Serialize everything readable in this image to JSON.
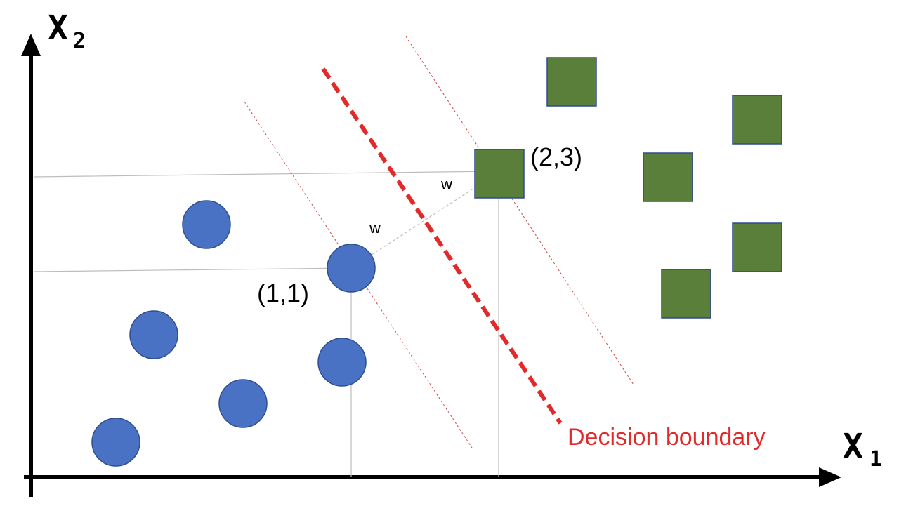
{
  "axes": {
    "x_label": "X",
    "x_subscript": "1",
    "y_label": "X",
    "y_subscript": "2"
  },
  "labels": {
    "point_a": "(1,1)",
    "point_b": "(2,3)",
    "w_upper": "w",
    "w_lower": "w",
    "decision_boundary": "Decision boundary"
  },
  "colors": {
    "circle_fill": "#4A72C4",
    "circle_stroke": "#2F4F8F",
    "square_fill": "#5A7F3A",
    "square_stroke": "#2F4A8F",
    "boundary": "#E32A2A",
    "margin": "#D04A4A",
    "guide": "#BDBDBD",
    "axis": "#000000"
  },
  "shapes": {
    "class_a": "circle",
    "class_b": "square"
  }
}
